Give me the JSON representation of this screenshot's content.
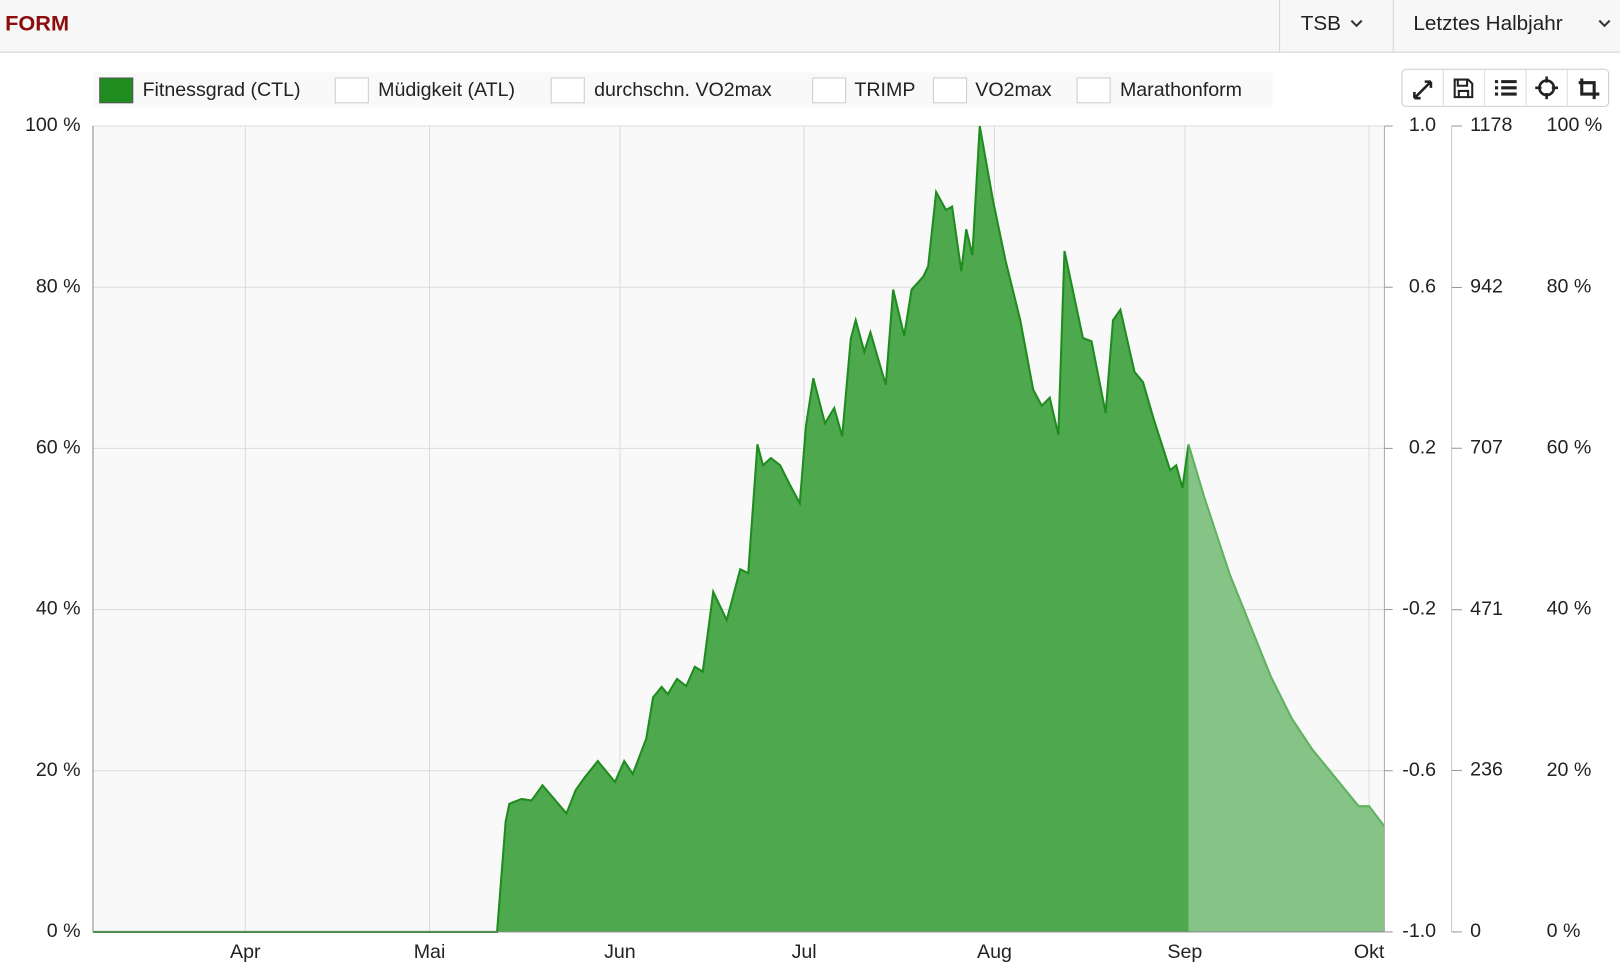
{
  "header": {
    "title": "FORM",
    "metric_select": "TSB",
    "period_select": "Letztes Halbjahr"
  },
  "chart_data": {
    "type": "area",
    "x": [
      -24.8,
      41,
      42.4,
      43,
      45,
      46.6,
      48.4,
      52.3,
      53.8,
      55.3,
      57.4,
      60.2,
      61.7,
      63.1,
      65.3,
      66.4,
      67.8,
      68.8,
      70.3,
      71.8,
      73.2,
      74.5,
      76.2,
      78.4,
      80.6,
      81.9,
      83.4,
      84.3,
      85.6,
      87.1,
      88.6,
      90.3,
      91.3,
      92.5,
      94.4,
      95.9,
      97.2,
      98.6,
      99.4,
      100.8,
      101.8,
      103.1,
      104.3,
      105.5,
      107.3,
      108.5,
      110.4,
      111.2,
      112.5,
      114.1,
      115.1,
      116.6,
      117.4,
      118.4,
      119.6,
      121.8,
      123.8,
      126.2,
      128.3,
      129.7,
      131,
      132.4,
      133.4,
      136.4,
      137.8,
      140.1,
      141.3,
      142.5,
      144.8,
      146.2,
      147.9,
      150.6,
      151.6,
      152.6,
      153.6,
      156.1,
      160.3,
      167,
      170.4,
      173.7,
      181.3,
      183,
      185.5
    ],
    "series": [
      {
        "name": "Fitnessgrad (CTL)",
        "color": "#1e8c1e",
        "fill": "#4ea84e",
        "values": [
          0,
          0,
          13.7,
          15.9,
          16.5,
          16.3,
          18.2,
          14.7,
          17.6,
          19.2,
          21.2,
          18.6,
          21.2,
          19.6,
          24,
          29.1,
          30.4,
          29.5,
          31.4,
          30.5,
          32.9,
          32.3,
          42.2,
          38.7,
          45,
          44.5,
          60.5,
          57.9,
          58.8,
          57.9,
          55.6,
          53.2,
          62.8,
          68.7,
          63.1,
          65,
          61.5,
          73.6,
          75.9,
          72,
          74.4,
          71,
          67.9,
          79.7,
          74,
          79.7,
          81.3,
          82.6,
          91.8,
          89.6,
          90,
          82,
          87.2,
          84,
          100,
          90.6,
          83.3,
          75.9,
          67.3,
          65.3,
          66.3,
          61.7,
          84.5,
          73.7,
          73.3,
          64.4,
          75.9,
          77.2,
          69.5,
          68.2,
          63.7,
          57.3,
          57.9,
          55.1,
          60.5,
          null,
          null,
          null,
          null,
          null,
          null,
          null,
          null
        ]
      },
      {
        "color": "#5fb25f",
        "fill": "#86c386",
        "values": [
          null,
          null,
          null,
          null,
          null,
          null,
          null,
          null,
          null,
          null,
          null,
          null,
          null,
          null,
          null,
          null,
          null,
          null,
          null,
          null,
          null,
          null,
          null,
          null,
          null,
          null,
          null,
          null,
          null,
          null,
          null,
          null,
          null,
          null,
          null,
          null,
          null,
          null,
          null,
          null,
          null,
          null,
          null,
          null,
          null,
          null,
          null,
          null,
          null,
          null,
          null,
          null,
          null,
          null,
          null,
          null,
          null,
          null,
          null,
          null,
          null,
          null,
          null,
          null,
          null,
          null,
          null,
          null,
          null,
          null,
          null,
          null,
          null,
          null,
          60.5,
          54.1,
          44.4,
          31.7,
          26.5,
          22.7,
          15.6,
          15.6,
          13.1
        ]
      }
    ],
    "hidden_series": [
      "Müdigkeit (ATL)",
      "durchschn. VO2max",
      "TRIMP",
      "VO2max",
      "Marathonform"
    ],
    "xlim": [
      -24.8,
      185.5
    ],
    "xticks": [
      {
        "value": 0,
        "label": "Apr"
      },
      {
        "value": 30,
        "label": "Mai"
      },
      {
        "value": 61,
        "label": "Jun"
      },
      {
        "value": 91,
        "label": "Jul"
      },
      {
        "value": 122,
        "label": "Aug"
      },
      {
        "value": 153,
        "label": "Sep"
      },
      {
        "value": 183,
        "label": "Okt"
      }
    ],
    "ylim": [
      0,
      100
    ],
    "yticks": [
      {
        "value": 0,
        "label": "0 %"
      },
      {
        "value": 20,
        "label": "20 %"
      },
      {
        "value": 40,
        "label": "40 %"
      },
      {
        "value": 60,
        "label": "60 %"
      },
      {
        "value": 80,
        "label": "80 %"
      },
      {
        "value": 100,
        "label": "100 %"
      }
    ],
    "y2lim": [
      -1,
      1
    ],
    "y2ticks": [
      {
        "value": -1,
        "label": "-1.0"
      },
      -0.6,
      -0.2,
      0.2,
      0.6,
      {
        "value": 1,
        "label": "1.0"
      }
    ],
    "y3lim": [
      0,
      1178
    ],
    "y3ticks": [
      0,
      236,
      471,
      707,
      942,
      1178
    ],
    "y4lim": [
      0,
      100
    ],
    "y4ticks": [
      {
        "value": 0,
        "label": "0 %"
      },
      {
        "value": 20,
        "label": "20 %"
      },
      {
        "value": 40,
        "label": "40 %"
      },
      {
        "value": 60,
        "label": "60 %"
      },
      {
        "value": 80,
        "label": "80 %"
      },
      {
        "value": 100,
        "label": "100 %"
      }
    ],
    "grid": true
  }
}
